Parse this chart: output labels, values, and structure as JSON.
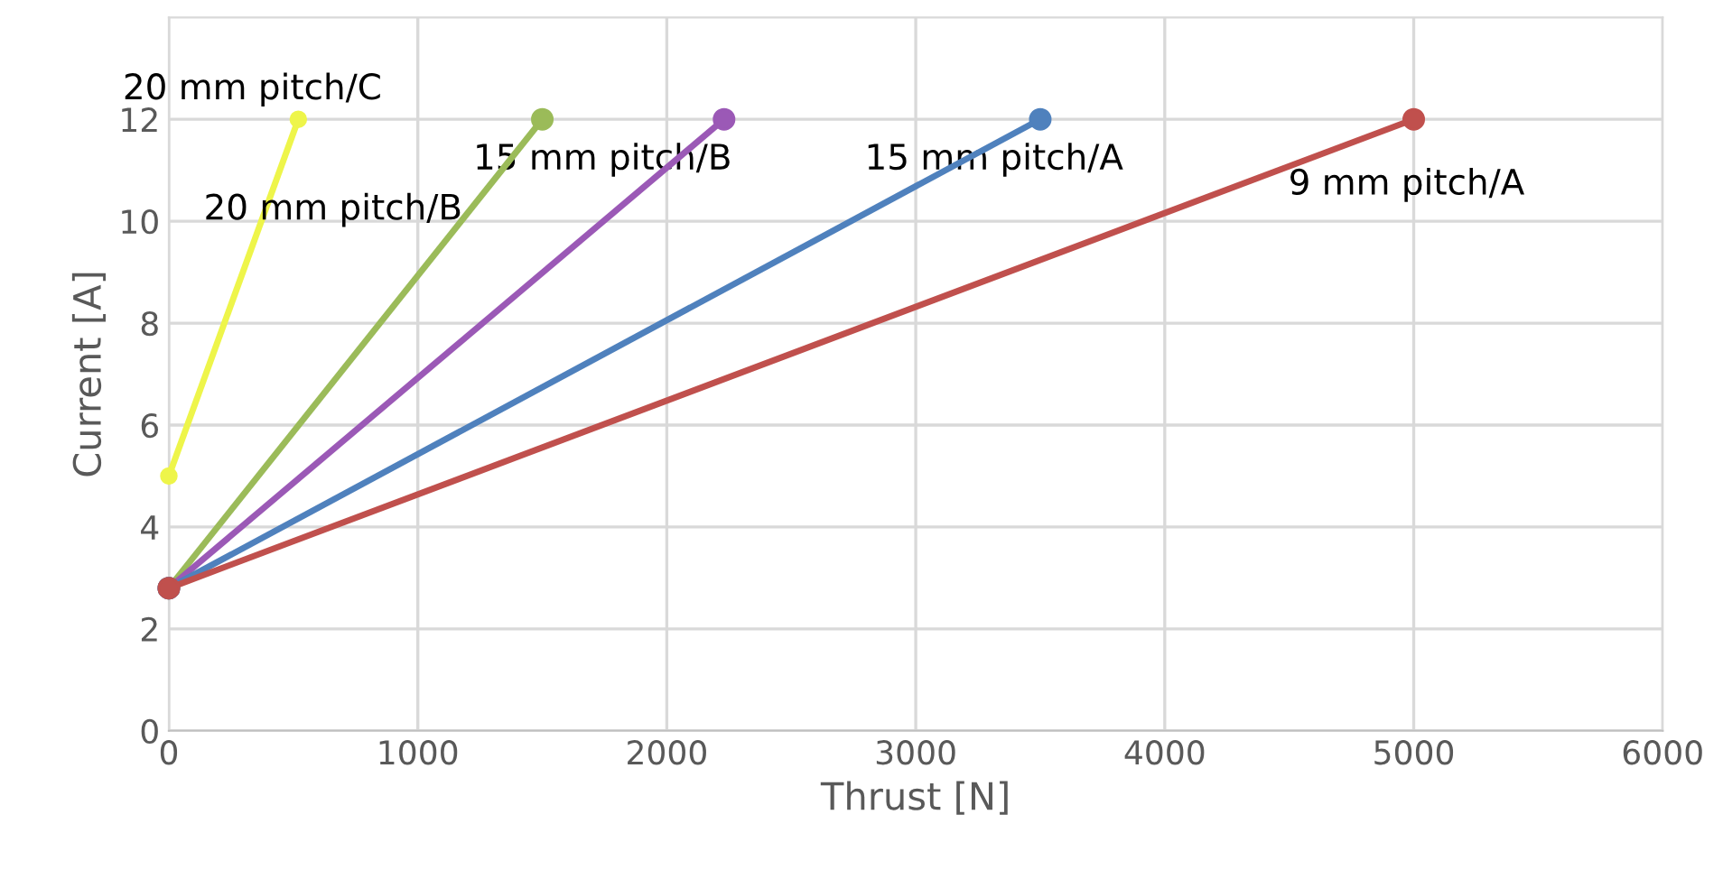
{
  "chart_data": {
    "type": "line",
    "xlabel": "Thrust [N]",
    "ylabel": "Current [A]",
    "xlim": [
      0,
      6000
    ],
    "xticks": [
      0,
      1000,
      2000,
      3000,
      4000,
      5000,
      6000
    ],
    "ylim": [
      0,
      14
    ],
    "yticks": [
      0,
      2,
      4,
      6,
      8,
      10,
      12
    ],
    "grid": true,
    "marker": "circle",
    "line_style": "solid",
    "legend": false,
    "series": [
      {
        "name": "20 mm pitch/C",
        "color": "#eef54a",
        "x": [
          0,
          520
        ],
        "values": [
          5,
          12
        ]
      },
      {
        "name": "20 mm pitch/B",
        "color": "#9bbb59",
        "x": [
          0,
          1500
        ],
        "values": [
          2.8,
          12
        ]
      },
      {
        "name": "15 mm pitch/B",
        "color": "#9b59b6",
        "x": [
          0,
          2230
        ],
        "values": [
          2.8,
          12
        ]
      },
      {
        "name": "15 mm pitch/A",
        "color": "#4f81bd",
        "x": [
          0,
          3500
        ],
        "values": [
          2.8,
          12
        ]
      },
      {
        "name": "9 mm pitch/A",
        "color": "#c0504d",
        "x": [
          0,
          5000
        ],
        "values": [
          2.8,
          12
        ]
      }
    ]
  }
}
